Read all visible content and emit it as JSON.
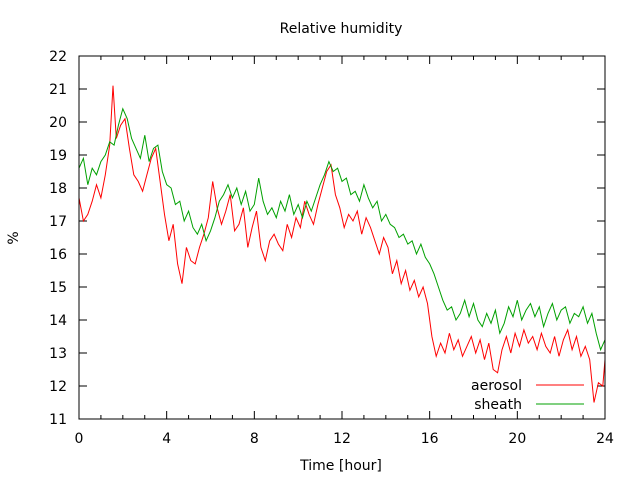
{
  "chart_data": {
    "type": "line",
    "title": "Relative humidity",
    "xlabel": "Time [hour]",
    "ylabel": "%",
    "xlim": [
      0,
      24
    ],
    "ylim": [
      11,
      22
    ],
    "xticks": [
      0,
      4,
      8,
      12,
      16,
      20,
      24
    ],
    "yticks": [
      11,
      12,
      13,
      14,
      15,
      16,
      17,
      18,
      19,
      20,
      21,
      22
    ],
    "grid": false,
    "legend_position": "bottom-right",
    "series": [
      {
        "name": "aerosol",
        "color": "#ff0000",
        "x": [
          0,
          0.2,
          0.4,
          0.6,
          0.8,
          1.0,
          1.2,
          1.4,
          1.55,
          1.7,
          1.9,
          2.1,
          2.3,
          2.5,
          2.7,
          2.9,
          3.1,
          3.3,
          3.5,
          3.7,
          3.9,
          4.1,
          4.3,
          4.5,
          4.7,
          4.9,
          5.1,
          5.3,
          5.5,
          5.7,
          5.9,
          6.1,
          6.3,
          6.5,
          6.7,
          6.9,
          7.1,
          7.3,
          7.5,
          7.7,
          7.9,
          8.1,
          8.3,
          8.5,
          8.7,
          8.9,
          9.1,
          9.3,
          9.5,
          9.7,
          9.9,
          10.1,
          10.3,
          10.5,
          10.7,
          10.9,
          11.1,
          11.3,
          11.5,
          11.7,
          11.9,
          12.1,
          12.3,
          12.5,
          12.7,
          12.9,
          13.1,
          13.3,
          13.5,
          13.7,
          13.9,
          14.1,
          14.3,
          14.5,
          14.7,
          14.9,
          15.1,
          15.3,
          15.5,
          15.7,
          15.9,
          16.1,
          16.3,
          16.5,
          16.7,
          16.9,
          17.1,
          17.3,
          17.5,
          17.7,
          17.9,
          18.1,
          18.3,
          18.5,
          18.7,
          18.9,
          19.1,
          19.3,
          19.5,
          19.7,
          19.9,
          20.1,
          20.3,
          20.5,
          20.7,
          20.9,
          21.1,
          21.3,
          21.5,
          21.7,
          21.9,
          22.1,
          22.3,
          22.5,
          22.7,
          22.9,
          23.1,
          23.3,
          23.5,
          23.7,
          23.9,
          24.0
        ],
        "values": [
          17.7,
          17.0,
          17.2,
          17.6,
          18.1,
          17.7,
          18.4,
          19.3,
          21.1,
          19.5,
          19.9,
          20.1,
          19.2,
          18.4,
          18.2,
          17.9,
          18.4,
          18.9,
          19.2,
          18.2,
          17.2,
          16.4,
          16.9,
          15.7,
          15.1,
          16.2,
          15.8,
          15.7,
          16.2,
          16.6,
          17.1,
          18.2,
          17.4,
          16.9,
          17.3,
          17.8,
          16.7,
          16.9,
          17.4,
          16.2,
          16.8,
          17.3,
          16.2,
          15.8,
          16.4,
          16.6,
          16.3,
          16.1,
          16.9,
          16.5,
          17.1,
          16.8,
          17.6,
          17.2,
          16.9,
          17.5,
          18.0,
          18.5,
          18.7,
          17.8,
          17.4,
          16.8,
          17.2,
          17.0,
          17.3,
          16.6,
          17.1,
          16.8,
          16.4,
          16.0,
          16.5,
          16.2,
          15.4,
          15.8,
          15.1,
          15.5,
          14.9,
          15.2,
          14.7,
          15.0,
          14.5,
          13.5,
          12.9,
          13.3,
          13.0,
          13.6,
          13.1,
          13.4,
          12.9,
          13.2,
          13.5,
          13.0,
          13.4,
          12.8,
          13.3,
          12.5,
          12.4,
          13.1,
          13.5,
          13.0,
          13.6,
          13.2,
          13.7,
          13.3,
          13.5,
          13.1,
          13.6,
          13.2,
          13.0,
          13.5,
          12.9,
          13.4,
          13.7,
          13.1,
          13.5,
          12.9,
          13.2,
          12.8,
          11.5,
          12.1,
          12.0,
          12.8
        ]
      },
      {
        "name": "sheath",
        "color": "#00a000",
        "x": [
          0,
          0.2,
          0.4,
          0.6,
          0.8,
          1.0,
          1.2,
          1.4,
          1.6,
          1.8,
          2.0,
          2.2,
          2.4,
          2.6,
          2.8,
          3.0,
          3.2,
          3.4,
          3.6,
          3.8,
          4.0,
          4.2,
          4.4,
          4.6,
          4.8,
          5.0,
          5.2,
          5.4,
          5.6,
          5.8,
          6.0,
          6.2,
          6.4,
          6.6,
          6.8,
          7.0,
          7.2,
          7.4,
          7.6,
          7.8,
          8.0,
          8.2,
          8.4,
          8.6,
          8.8,
          9.0,
          9.2,
          9.4,
          9.6,
          9.8,
          10.0,
          10.2,
          10.4,
          10.6,
          10.8,
          11.0,
          11.2,
          11.4,
          11.6,
          11.8,
          12.0,
          12.2,
          12.4,
          12.6,
          12.8,
          13.0,
          13.2,
          13.4,
          13.6,
          13.8,
          14.0,
          14.2,
          14.4,
          14.6,
          14.8,
          15.0,
          15.2,
          15.4,
          15.6,
          15.8,
          16.0,
          16.2,
          16.4,
          16.6,
          16.8,
          17.0,
          17.2,
          17.4,
          17.6,
          17.8,
          18.0,
          18.2,
          18.4,
          18.6,
          18.8,
          19.0,
          19.2,
          19.4,
          19.6,
          19.8,
          20.0,
          20.2,
          20.4,
          20.6,
          20.8,
          21.0,
          21.2,
          21.4,
          21.6,
          21.8,
          22.0,
          22.2,
          22.4,
          22.6,
          22.8,
          23.0,
          23.2,
          23.4,
          23.6,
          23.8,
          24.0
        ],
        "values": [
          18.6,
          18.9,
          18.1,
          18.6,
          18.4,
          18.8,
          19.0,
          19.4,
          19.3,
          19.9,
          20.4,
          20.1,
          19.5,
          19.2,
          18.9,
          19.6,
          18.8,
          19.2,
          19.3,
          18.5,
          18.1,
          18.0,
          17.5,
          17.6,
          17.0,
          17.3,
          16.8,
          16.6,
          16.9,
          16.4,
          16.7,
          17.1,
          17.6,
          17.8,
          18.1,
          17.7,
          18.0,
          17.5,
          17.9,
          17.3,
          17.5,
          18.3,
          17.6,
          17.2,
          17.4,
          17.1,
          17.6,
          17.3,
          17.8,
          17.2,
          17.5,
          17.1,
          17.6,
          17.3,
          17.7,
          18.1,
          18.4,
          18.8,
          18.5,
          18.6,
          18.2,
          18.3,
          17.8,
          17.9,
          17.6,
          18.1,
          17.7,
          17.4,
          17.6,
          17.0,
          17.2,
          16.9,
          16.8,
          16.5,
          16.6,
          16.3,
          16.4,
          16.0,
          16.3,
          15.9,
          15.7,
          15.4,
          15.0,
          14.6,
          14.3,
          14.4,
          14.0,
          14.2,
          14.6,
          14.1,
          14.5,
          14.0,
          13.8,
          14.2,
          13.9,
          14.3,
          13.6,
          13.9,
          14.4,
          14.1,
          14.6,
          14.0,
          14.3,
          14.5,
          14.1,
          14.4,
          13.8,
          14.2,
          14.5,
          14.0,
          14.3,
          14.4,
          13.9,
          14.2,
          14.1,
          14.4,
          13.9,
          14.2,
          13.6,
          13.1,
          13.4
        ]
      }
    ]
  }
}
